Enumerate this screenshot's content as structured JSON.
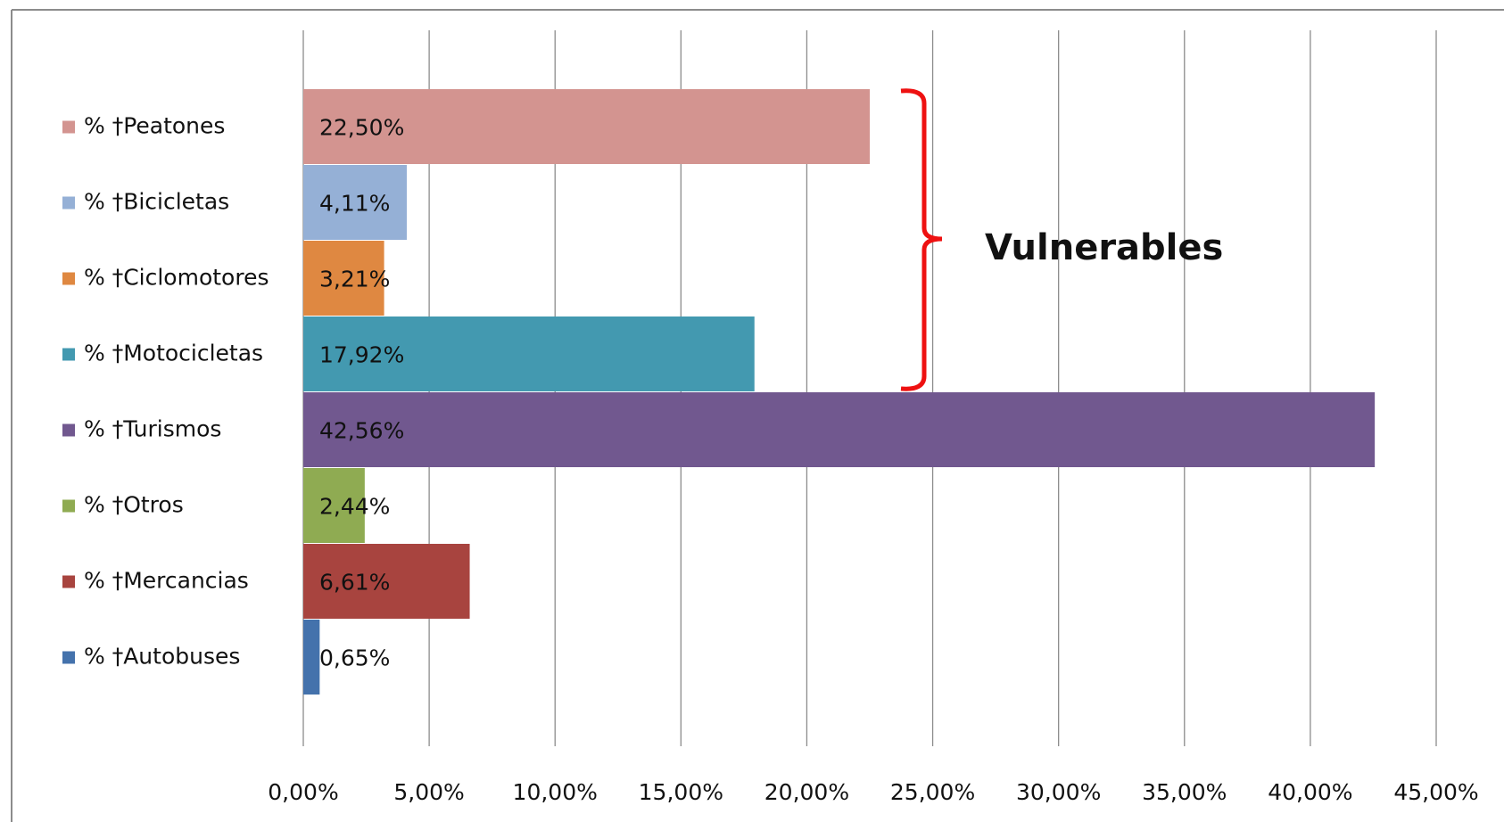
{
  "chart_data": {
    "type": "bar",
    "orientation": "horizontal",
    "categories": [
      "% †Peatones",
      "% †Bicicletas",
      "% †Ciclomotores",
      "% †Motocicletas",
      "% †Turismos",
      "% †Otros",
      "% †Mercancias",
      "% †Autobuses"
    ],
    "values": [
      22.5,
      4.11,
      3.21,
      17.92,
      42.56,
      2.44,
      6.61,
      0.65
    ],
    "value_labels": [
      "22,50%",
      "4,11%",
      "3,21%",
      "17,92%",
      "42,56%",
      "2,44%",
      "6,61%",
      "0,65%"
    ],
    "colors": [
      "#d39490",
      "#95b0d6",
      "#df8841",
      "#4399b0",
      "#71588f",
      "#8fab52",
      "#a8443f",
      "#4472ac"
    ],
    "xlim": [
      0,
      45
    ],
    "xticks": [
      {
        "value": 0,
        "label": "0,00%"
      },
      {
        "value": 5,
        "label": "5,00%"
      },
      {
        "value": 10,
        "label": "10,00%"
      },
      {
        "value": 15,
        "label": "15,00%"
      },
      {
        "value": 20,
        "label": "20,00%"
      },
      {
        "value": 25,
        "label": "25,00%"
      },
      {
        "value": 30,
        "label": "30,00%"
      },
      {
        "value": 35,
        "label": "35,00%"
      },
      {
        "value": 40,
        "label": "40,00%"
      },
      {
        "value": 45,
        "label": "45,00%"
      }
    ],
    "grid": true,
    "annotation": "Vulnerables",
    "annotation_color": "#ee1111"
  }
}
